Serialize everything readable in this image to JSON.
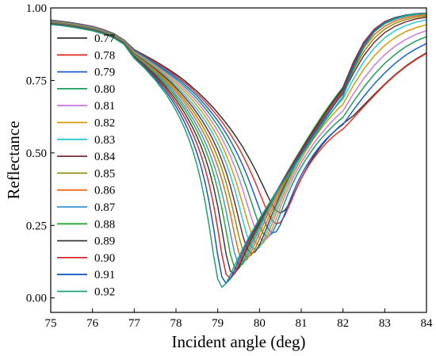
{
  "chart_data": {
    "type": "line",
    "title": "",
    "xlabel": "Incident angle (deg)",
    "ylabel": "Reflectance",
    "xlim": [
      75,
      84
    ],
    "ylim": [
      -0.05,
      1.0
    ],
    "xticks": [
      "75",
      "76",
      "77",
      "78",
      "79",
      "80",
      "81",
      "82",
      "83",
      "84"
    ],
    "yticks": [
      "0.00",
      "0.25",
      "0.50",
      "0.75",
      "1.00"
    ],
    "grid": false,
    "legend_position": "left",
    "x": [
      75.0,
      75.25,
      75.5,
      75.75,
      76.0,
      76.25,
      76.5,
      76.75,
      77.0,
      77.25,
      77.5,
      77.75,
      77.9,
      78.0,
      78.1,
      78.2,
      78.3,
      78.4,
      78.5,
      78.6,
      78.7,
      78.8,
      78.9,
      79.0,
      79.1,
      79.2,
      79.3,
      79.4,
      79.5,
      79.6,
      79.7,
      79.8,
      79.9,
      80.0,
      80.1,
      80.2,
      80.3,
      80.4,
      80.5,
      80.6,
      80.7,
      80.8,
      80.9,
      81.0,
      81.1,
      81.2,
      81.3,
      81.4,
      81.5,
      81.6,
      81.7,
      81.8,
      81.9,
      82.0,
      82.25,
      82.5,
      82.75,
      83.0,
      83.25,
      83.5,
      83.75,
      84.0
    ],
    "series": [
      {
        "name": "0.77",
        "color": "#333333",
        "values": [
          0.958,
          0.954,
          0.949,
          0.943,
          0.936,
          0.926,
          0.912,
          0.89,
          0.856,
          0.837,
          0.817,
          0.795,
          0.781,
          0.771,
          0.761,
          0.75,
          0.738,
          0.725,
          0.713,
          0.699,
          0.685,
          0.67,
          0.655,
          0.638,
          0.621,
          0.603,
          0.584,
          0.564,
          0.542,
          0.52,
          0.495,
          0.469,
          0.442,
          0.412,
          0.382,
          0.351,
          0.322,
          0.301,
          0.293,
          0.301,
          0.322,
          0.351,
          0.382,
          0.412,
          0.439,
          0.465,
          0.488,
          0.509,
          0.528,
          0.545,
          0.561,
          0.575,
          0.589,
          0.601,
          0.628,
          0.665,
          0.702,
          0.737,
          0.77,
          0.799,
          0.824,
          0.845
        ]
      },
      {
        "name": "0.78",
        "color": "#e8312a",
        "values": [
          0.957,
          0.953,
          0.948,
          0.942,
          0.935,
          0.925,
          0.911,
          0.889,
          0.854,
          0.834,
          0.814,
          0.791,
          0.776,
          0.766,
          0.755,
          0.744,
          0.732,
          0.719,
          0.705,
          0.691,
          0.676,
          0.66,
          0.643,
          0.626,
          0.607,
          0.587,
          0.565,
          0.542,
          0.518,
          0.491,
          0.462,
          0.431,
          0.398,
          0.363,
          0.328,
          0.294,
          0.268,
          0.255,
          0.26,
          0.282,
          0.314,
          0.348,
          0.381,
          0.411,
          0.437,
          0.461,
          0.482,
          0.501,
          0.518,
          0.534,
          0.548,
          0.561,
          0.572,
          0.582,
          0.62,
          0.66,
          0.698,
          0.735,
          0.768,
          0.797,
          0.822,
          0.843
        ]
      },
      {
        "name": "0.79",
        "color": "#1f5fd6",
        "values": [
          0.956,
          0.952,
          0.947,
          0.941,
          0.934,
          0.924,
          0.91,
          0.888,
          0.852,
          0.832,
          0.81,
          0.786,
          0.771,
          0.76,
          0.749,
          0.737,
          0.724,
          0.711,
          0.697,
          0.681,
          0.665,
          0.648,
          0.63,
          0.611,
          0.59,
          0.568,
          0.543,
          0.517,
          0.488,
          0.457,
          0.423,
          0.386,
          0.347,
          0.307,
          0.27,
          0.24,
          0.224,
          0.228,
          0.252,
          0.288,
          0.326,
          0.362,
          0.395,
          0.424,
          0.45,
          0.474,
          0.495,
          0.514,
          0.532,
          0.548,
          0.562,
          0.575,
          0.587,
          0.598,
          0.648,
          0.695,
          0.738,
          0.776,
          0.809,
          0.837,
          0.859,
          0.877
        ]
      },
      {
        "name": "0.80",
        "color": "#1a9e5a",
        "values": [
          0.955,
          0.951,
          0.946,
          0.94,
          0.933,
          0.923,
          0.909,
          0.887,
          0.85,
          0.829,
          0.806,
          0.781,
          0.765,
          0.754,
          0.742,
          0.729,
          0.716,
          0.702,
          0.687,
          0.671,
          0.653,
          0.635,
          0.615,
          0.594,
          0.571,
          0.545,
          0.517,
          0.487,
          0.453,
          0.416,
          0.376,
          0.333,
          0.289,
          0.249,
          0.22,
          0.21,
          0.222,
          0.252,
          0.29,
          0.328,
          0.364,
          0.396,
          0.425,
          0.451,
          0.475,
          0.497,
          0.517,
          0.536,
          0.553,
          0.569,
          0.584,
          0.598,
          0.611,
          0.623,
          0.677,
          0.727,
          0.771,
          0.809,
          0.84,
          0.866,
          0.886,
          0.901
        ]
      },
      {
        "name": "0.81",
        "color": "#c77be0",
        "values": [
          0.954,
          0.95,
          0.945,
          0.939,
          0.932,
          0.922,
          0.908,
          0.886,
          0.848,
          0.826,
          0.802,
          0.776,
          0.759,
          0.747,
          0.734,
          0.721,
          0.707,
          0.692,
          0.676,
          0.659,
          0.64,
          0.62,
          0.599,
          0.576,
          0.55,
          0.521,
          0.49,
          0.455,
          0.416,
          0.373,
          0.326,
          0.279,
          0.237,
          0.207,
          0.196,
          0.207,
          0.236,
          0.273,
          0.312,
          0.348,
          0.381,
          0.412,
          0.44,
          0.466,
          0.49,
          0.512,
          0.533,
          0.552,
          0.57,
          0.587,
          0.603,
          0.618,
          0.632,
          0.645,
          0.704,
          0.757,
          0.802,
          0.839,
          0.868,
          0.891,
          0.909,
          0.922
        ]
      },
      {
        "name": "0.82",
        "color": "#d49a0c",
        "values": [
          0.953,
          0.949,
          0.944,
          0.938,
          0.931,
          0.921,
          0.907,
          0.885,
          0.846,
          0.823,
          0.798,
          0.77,
          0.752,
          0.74,
          0.726,
          0.712,
          0.697,
          0.681,
          0.664,
          0.646,
          0.626,
          0.604,
          0.581,
          0.555,
          0.526,
          0.494,
          0.458,
          0.418,
          0.372,
          0.322,
          0.271,
          0.225,
          0.192,
          0.18,
          0.191,
          0.219,
          0.255,
          0.293,
          0.329,
          0.363,
          0.395,
          0.425,
          0.453,
          0.479,
          0.504,
          0.527,
          0.549,
          0.569,
          0.588,
          0.606,
          0.623,
          0.639,
          0.654,
          0.668,
          0.733,
          0.789,
          0.835,
          0.871,
          0.898,
          0.918,
          0.932,
          0.942
        ]
      },
      {
        "name": "0.83",
        "color": "#29c9d4",
        "values": [
          0.952,
          0.948,
          0.943,
          0.937,
          0.93,
          0.92,
          0.906,
          0.884,
          0.844,
          0.82,
          0.794,
          0.765,
          0.746,
          0.732,
          0.718,
          0.702,
          0.686,
          0.669,
          0.651,
          0.631,
          0.61,
          0.587,
          0.561,
          0.533,
          0.501,
          0.465,
          0.424,
          0.377,
          0.324,
          0.268,
          0.216,
          0.179,
          0.165,
          0.174,
          0.2,
          0.235,
          0.272,
          0.308,
          0.343,
          0.375,
          0.406,
          0.435,
          0.463,
          0.489,
          0.514,
          0.538,
          0.56,
          0.581,
          0.601,
          0.62,
          0.638,
          0.655,
          0.671,
          0.686,
          0.755,
          0.815,
          0.862,
          0.897,
          0.922,
          0.939,
          0.951,
          0.959
        ]
      },
      {
        "name": "0.84",
        "color": "#7a2a3a",
        "values": [
          0.951,
          0.947,
          0.942,
          0.936,
          0.929,
          0.919,
          0.905,
          0.883,
          0.842,
          0.817,
          0.79,
          0.76,
          0.74,
          0.725,
          0.71,
          0.693,
          0.676,
          0.658,
          0.638,
          0.617,
          0.594,
          0.569,
          0.541,
          0.51,
          0.474,
          0.434,
          0.387,
          0.333,
          0.274,
          0.215,
          0.171,
          0.153,
          0.159,
          0.183,
          0.216,
          0.252,
          0.288,
          0.322,
          0.355,
          0.386,
          0.416,
          0.445,
          0.472,
          0.498,
          0.523,
          0.547,
          0.57,
          0.592,
          0.613,
          0.633,
          0.652,
          0.67,
          0.687,
          0.703,
          0.775,
          0.836,
          0.882,
          0.915,
          0.937,
          0.952,
          0.962,
          0.968
        ]
      },
      {
        "name": "0.85",
        "color": "#8f8f10",
        "values": [
          0.95,
          0.946,
          0.941,
          0.935,
          0.928,
          0.918,
          0.904,
          0.882,
          0.84,
          0.814,
          0.786,
          0.754,
          0.733,
          0.718,
          0.701,
          0.684,
          0.665,
          0.646,
          0.625,
          0.602,
          0.577,
          0.549,
          0.519,
          0.484,
          0.445,
          0.398,
          0.344,
          0.282,
          0.216,
          0.163,
          0.14,
          0.147,
          0.171,
          0.203,
          0.237,
          0.271,
          0.304,
          0.335,
          0.365,
          0.394,
          0.422,
          0.449,
          0.475,
          0.5,
          0.524,
          0.547,
          0.569,
          0.59,
          0.611,
          0.631,
          0.65,
          0.669,
          0.687,
          0.704,
          0.785,
          0.85,
          0.896,
          0.927,
          0.947,
          0.96,
          0.968,
          0.973
        ]
      },
      {
        "name": "0.86",
        "color": "#ee6a12",
        "values": [
          0.949,
          0.945,
          0.94,
          0.934,
          0.927,
          0.917,
          0.903,
          0.881,
          0.838,
          0.811,
          0.782,
          0.748,
          0.726,
          0.71,
          0.693,
          0.674,
          0.654,
          0.633,
          0.61,
          0.585,
          0.558,
          0.528,
          0.493,
          0.454,
          0.408,
          0.354,
          0.291,
          0.221,
          0.158,
          0.126,
          0.132,
          0.158,
          0.19,
          0.223,
          0.256,
          0.288,
          0.318,
          0.347,
          0.375,
          0.402,
          0.428,
          0.454,
          0.479,
          0.503,
          0.527,
          0.55,
          0.572,
          0.594,
          0.615,
          0.635,
          0.655,
          0.674,
          0.693,
          0.711,
          0.795,
          0.862,
          0.908,
          0.937,
          0.955,
          0.966,
          0.973,
          0.977
        ]
      },
      {
        "name": "0.87",
        "color": "#3a97d8",
        "values": [
          0.948,
          0.944,
          0.939,
          0.933,
          0.926,
          0.916,
          0.902,
          0.88,
          0.836,
          0.808,
          0.777,
          0.742,
          0.719,
          0.701,
          0.683,
          0.663,
          0.642,
          0.619,
          0.594,
          0.567,
          0.537,
          0.502,
          0.463,
          0.417,
          0.363,
          0.299,
          0.226,
          0.156,
          0.114,
          0.116,
          0.141,
          0.173,
          0.206,
          0.238,
          0.269,
          0.299,
          0.328,
          0.356,
          0.383,
          0.409,
          0.435,
          0.46,
          0.485,
          0.509,
          0.533,
          0.556,
          0.579,
          0.601,
          0.622,
          0.643,
          0.663,
          0.683,
          0.702,
          0.72,
          0.805,
          0.873,
          0.918,
          0.945,
          0.961,
          0.971,
          0.977,
          0.98
        ]
      },
      {
        "name": "0.88",
        "color": "#26a62f",
        "values": [
          0.947,
          0.943,
          0.938,
          0.932,
          0.925,
          0.915,
          0.901,
          0.879,
          0.834,
          0.805,
          0.773,
          0.736,
          0.711,
          0.693,
          0.673,
          0.652,
          0.629,
          0.604,
          0.577,
          0.547,
          0.513,
          0.474,
          0.428,
          0.373,
          0.308,
          0.231,
          0.153,
          0.104,
          0.1,
          0.122,
          0.154,
          0.186,
          0.218,
          0.249,
          0.279,
          0.308,
          0.336,
          0.363,
          0.39,
          0.416,
          0.441,
          0.466,
          0.49,
          0.514,
          0.538,
          0.561,
          0.584,
          0.606,
          0.628,
          0.649,
          0.669,
          0.689,
          0.708,
          0.727,
          0.813,
          0.881,
          0.925,
          0.951,
          0.966,
          0.974,
          0.979,
          0.982
        ]
      },
      {
        "name": "0.89",
        "color": "#3a3a3a",
        "values": [
          0.946,
          0.942,
          0.937,
          0.931,
          0.924,
          0.914,
          0.9,
          0.878,
          0.832,
          0.802,
          0.768,
          0.729,
          0.702,
          0.683,
          0.662,
          0.639,
          0.614,
          0.587,
          0.557,
          0.523,
          0.484,
          0.438,
          0.383,
          0.316,
          0.236,
          0.151,
          0.093,
          0.083,
          0.104,
          0.136,
          0.168,
          0.199,
          0.229,
          0.258,
          0.286,
          0.313,
          0.339,
          0.365,
          0.39,
          0.415,
          0.439,
          0.463,
          0.487,
          0.51,
          0.533,
          0.556,
          0.578,
          0.6,
          0.622,
          0.643,
          0.664,
          0.684,
          0.704,
          0.723,
          0.812,
          0.882,
          0.927,
          0.953,
          0.967,
          0.975,
          0.98,
          0.982
        ]
      },
      {
        "name": "0.90",
        "color": "#d7282d",
        "values": [
          0.945,
          0.941,
          0.936,
          0.93,
          0.923,
          0.913,
          0.899,
          0.877,
          0.83,
          0.799,
          0.763,
          0.722,
          0.693,
          0.672,
          0.649,
          0.624,
          0.597,
          0.566,
          0.532,
          0.492,
          0.445,
          0.389,
          0.321,
          0.239,
          0.149,
          0.082,
          0.066,
          0.084,
          0.115,
          0.147,
          0.178,
          0.208,
          0.237,
          0.264,
          0.29,
          0.316,
          0.341,
          0.365,
          0.389,
          0.413,
          0.436,
          0.459,
          0.482,
          0.505,
          0.527,
          0.549,
          0.571,
          0.593,
          0.614,
          0.635,
          0.656,
          0.676,
          0.696,
          0.716,
          0.806,
          0.879,
          0.926,
          0.952,
          0.967,
          0.975,
          0.98,
          0.982
        ]
      },
      {
        "name": "0.91",
        "color": "#1956c2",
        "values": [
          0.944,
          0.94,
          0.935,
          0.929,
          0.922,
          0.912,
          0.898,
          0.876,
          0.828,
          0.795,
          0.758,
          0.714,
          0.683,
          0.66,
          0.635,
          0.607,
          0.576,
          0.541,
          0.501,
          0.453,
          0.396,
          0.326,
          0.242,
          0.147,
          0.072,
          0.05,
          0.066,
          0.096,
          0.128,
          0.159,
          0.188,
          0.216,
          0.243,
          0.269,
          0.294,
          0.318,
          0.342,
          0.365,
          0.388,
          0.411,
          0.433,
          0.455,
          0.477,
          0.499,
          0.521,
          0.543,
          0.564,
          0.585,
          0.606,
          0.627,
          0.647,
          0.667,
          0.687,
          0.707,
          0.799,
          0.874,
          0.922,
          0.95,
          0.966,
          0.975,
          0.98,
          0.982
        ]
      },
      {
        "name": "0.92",
        "color": "#20a070",
        "values": [
          0.943,
          0.939,
          0.934,
          0.928,
          0.921,
          0.911,
          0.897,
          0.875,
          0.826,
          0.792,
          0.752,
          0.705,
          0.671,
          0.646,
          0.618,
          0.587,
          0.551,
          0.509,
          0.46,
          0.401,
          0.329,
          0.244,
          0.147,
          0.065,
          0.037,
          0.05,
          0.079,
          0.11,
          0.14,
          0.169,
          0.197,
          0.223,
          0.248,
          0.273,
          0.296,
          0.319,
          0.341,
          0.363,
          0.385,
          0.406,
          0.428,
          0.449,
          0.47,
          0.491,
          0.512,
          0.533,
          0.554,
          0.574,
          0.595,
          0.615,
          0.635,
          0.655,
          0.675,
          0.694,
          0.788,
          0.866,
          0.917,
          0.947,
          0.964,
          0.974,
          0.979,
          0.982
        ]
      }
    ]
  }
}
